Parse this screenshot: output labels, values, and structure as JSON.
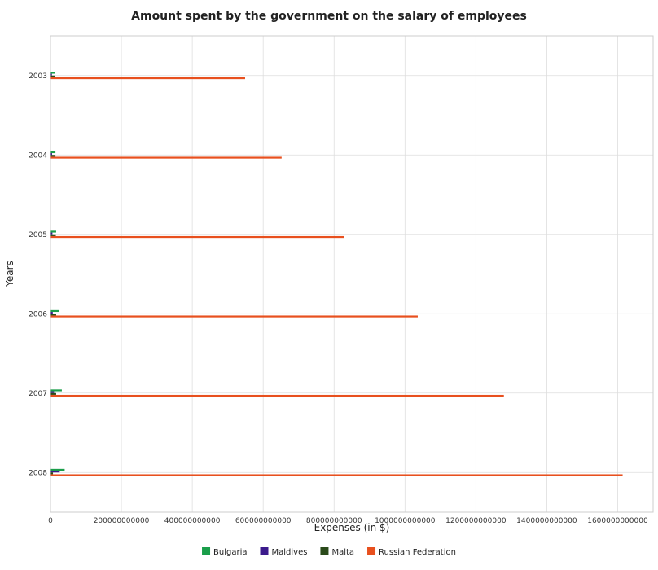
{
  "chart_data": {
    "type": "bar",
    "orientation": "horizontal",
    "title": "Amount spent by the government on the salary of employees",
    "xlabel": "Expenses (in $)",
    "ylabel": "Years",
    "categories": [
      "2003",
      "2004",
      "2005",
      "2006",
      "2007",
      "2008"
    ],
    "series": [
      {
        "name": "Bulgaria",
        "color": "#1a9e4a",
        "values": [
          12000000000.0,
          14000000000.0,
          16000000000.0,
          25000000000.0,
          32000000000.0,
          40000000000.0
        ]
      },
      {
        "name": "Maldives",
        "color": "#3b1a8c",
        "values": [
          4000000000.0,
          4500000000.0,
          5500000000.0,
          6500000000.0,
          10000000000.0,
          26000000000.0
        ]
      },
      {
        "name": "Malta",
        "color": "#2a4a1a",
        "values": [
          13000000000.0,
          14000000000.0,
          15000000000.0,
          16000000000.0,
          16000000000.0,
          7000000000.0
        ]
      },
      {
        "name": "Russian Federation",
        "color": "#e8501e",
        "values": [
          549000000000.0,
          652000000000.0,
          828000000000.0,
          1036000000000.0,
          1279000000000.0,
          1614000000000.0
        ]
      }
    ],
    "xlim": [
      0,
      1700000000000
    ],
    "xticks": [
      0,
      200000000000,
      400000000000,
      600000000000,
      800000000000,
      1000000000000,
      1200000000000,
      1400000000000,
      1600000000000
    ],
    "xtick_labels": [
      "0",
      "200000000000",
      "400000000000",
      "600000000000",
      "800000000000",
      "1000000000000",
      "1200000000000",
      "1400000000000",
      "1600000000000"
    ],
    "grid": true,
    "legend": "bottom-center"
  }
}
